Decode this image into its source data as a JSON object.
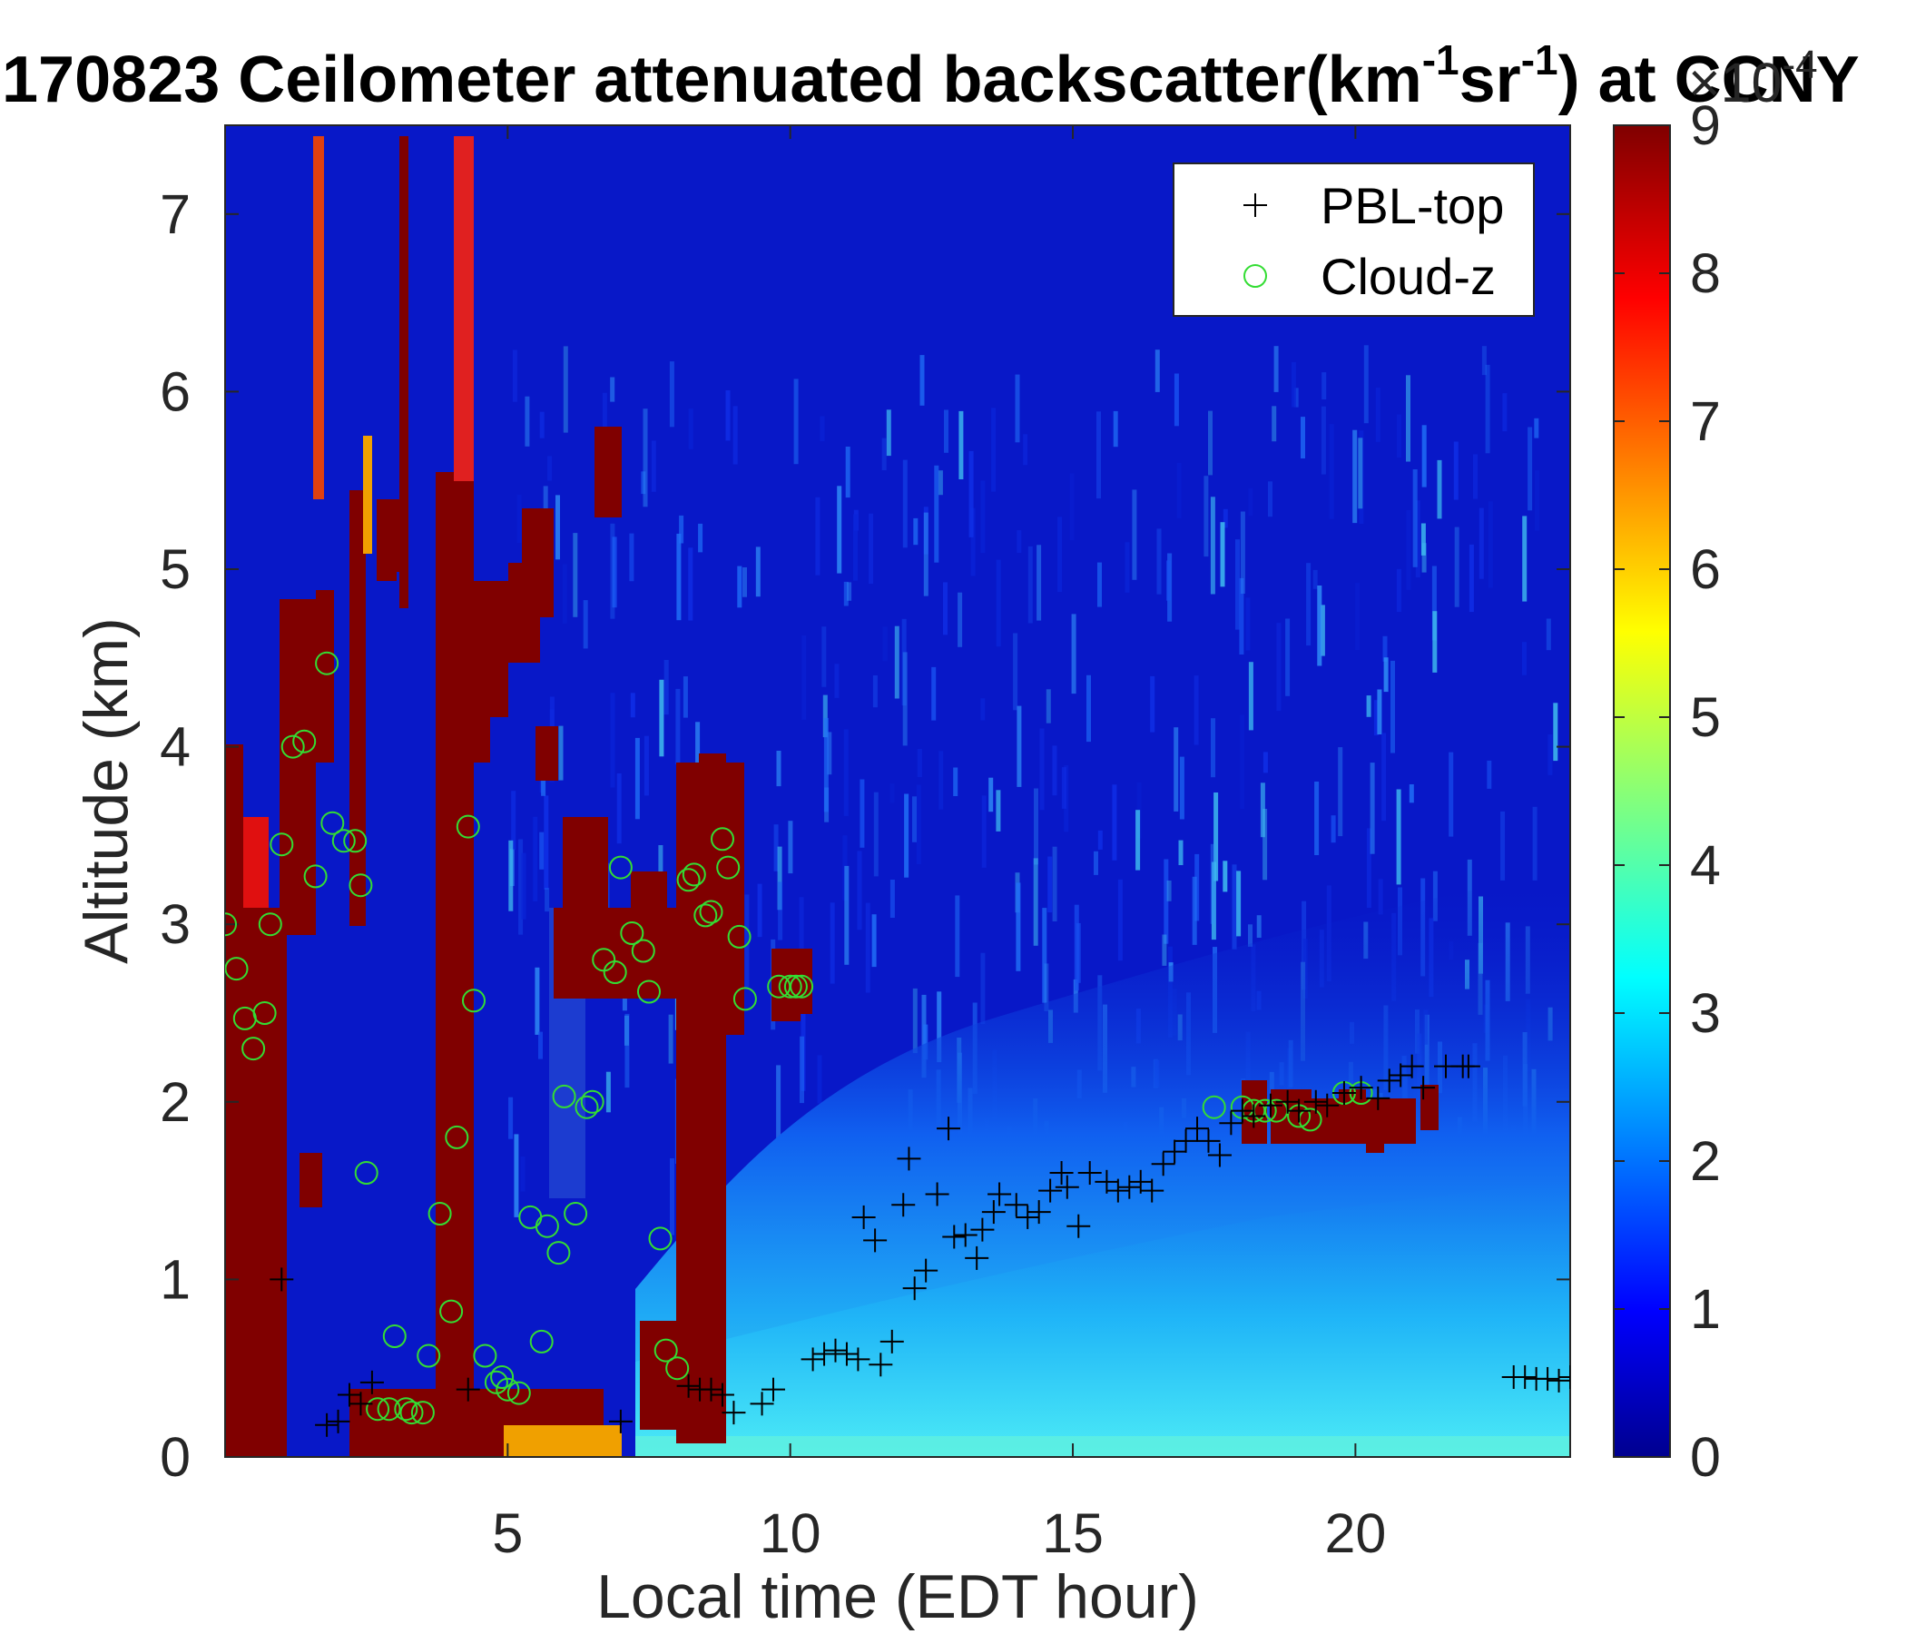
{
  "chart_data": {
    "type": "heatmap",
    "title": {
      "part1": "170823 Ceilometer attenuated backscatter(km",
      "sup1": "-1",
      "part2": "sr",
      "sup2": "-1",
      "part3": ") at CCNY"
    },
    "xlabel": "Local time (EDT hour)",
    "ylabel": "Altitude (km)",
    "xlim": [
      0,
      23.8
    ],
    "ylim": [
      0,
      7.5
    ],
    "xticks": [
      5,
      10,
      15,
      20
    ],
    "yticks": [
      0,
      1,
      2,
      3,
      4,
      5,
      6,
      7
    ],
    "colorbar": {
      "colormap": "jet",
      "range": [
        0,
        9
      ],
      "ticks": [
        0,
        1,
        2,
        3,
        4,
        5,
        6,
        7,
        8,
        9
      ],
      "exponent": "×10",
      "exponent_power": "-4"
    },
    "legend": {
      "position": "top-right",
      "entries": [
        {
          "label": "PBL-top",
          "marker": "+",
          "color": "#000000"
        },
        {
          "label": "Cloud-z",
          "marker": "o",
          "color": "#33dd33"
        }
      ]
    },
    "series": [
      {
        "name": "PBL-top",
        "points": [
          [
            1.0,
            1.0
          ],
          [
            1.8,
            0.18
          ],
          [
            2.0,
            0.2
          ],
          [
            2.2,
            0.35
          ],
          [
            2.4,
            0.3
          ],
          [
            2.6,
            0.42
          ],
          [
            4.3,
            0.38
          ],
          [
            7.0,
            0.2
          ],
          [
            8.2,
            0.4
          ],
          [
            8.4,
            0.38
          ],
          [
            8.6,
            0.38
          ],
          [
            8.8,
            0.35
          ],
          [
            9.0,
            0.25
          ],
          [
            9.5,
            0.3
          ],
          [
            9.7,
            0.38
          ],
          [
            10.4,
            0.55
          ],
          [
            10.6,
            0.58
          ],
          [
            10.8,
            0.6
          ],
          [
            11.0,
            0.58
          ],
          [
            11.2,
            0.55
          ],
          [
            11.3,
            1.35
          ],
          [
            11.5,
            1.22
          ],
          [
            11.6,
            0.52
          ],
          [
            11.8,
            0.65
          ],
          [
            12.0,
            1.42
          ],
          [
            12.1,
            1.68
          ],
          [
            12.2,
            0.95
          ],
          [
            12.4,
            1.05
          ],
          [
            12.6,
            1.48
          ],
          [
            12.8,
            1.85
          ],
          [
            12.9,
            1.24
          ],
          [
            13.1,
            1.25
          ],
          [
            13.3,
            1.12
          ],
          [
            13.4,
            1.28
          ],
          [
            13.6,
            1.38
          ],
          [
            13.7,
            1.48
          ],
          [
            14.0,
            1.42
          ],
          [
            14.2,
            1.35
          ],
          [
            14.4,
            1.38
          ],
          [
            14.6,
            1.5
          ],
          [
            14.8,
            1.6
          ],
          [
            14.9,
            1.52
          ],
          [
            15.1,
            1.3
          ],
          [
            15.3,
            1.6
          ],
          [
            15.6,
            1.55
          ],
          [
            15.8,
            1.5
          ],
          [
            16.0,
            1.52
          ],
          [
            16.2,
            1.55
          ],
          [
            16.4,
            1.5
          ],
          [
            16.6,
            1.65
          ],
          [
            16.8,
            1.72
          ],
          [
            17.0,
            1.78
          ],
          [
            17.2,
            1.85
          ],
          [
            17.4,
            1.78
          ],
          [
            17.6,
            1.7
          ],
          [
            17.8,
            1.88
          ],
          [
            18.0,
            1.95
          ],
          [
            18.2,
            1.92
          ],
          [
            18.5,
            1.98
          ],
          [
            18.8,
            2.0
          ],
          [
            19.0,
            1.95
          ],
          [
            19.3,
            2.0
          ],
          [
            19.5,
            1.98
          ],
          [
            19.8,
            2.05
          ],
          [
            20.1,
            2.08
          ],
          [
            20.4,
            2.02
          ],
          [
            20.6,
            2.12
          ],
          [
            20.8,
            2.15
          ],
          [
            21.0,
            2.2
          ],
          [
            21.2,
            2.08
          ],
          [
            21.6,
            2.2
          ],
          [
            21.9,
            2.2
          ],
          [
            22.0,
            2.2
          ],
          [
            22.8,
            0.45
          ],
          [
            23.0,
            0.45
          ],
          [
            23.2,
            0.44
          ],
          [
            23.4,
            0.44
          ],
          [
            23.6,
            0.43
          ],
          [
            23.8,
            0.45
          ]
        ]
      },
      {
        "name": "Cloud-z",
        "points": [
          [
            0.0,
            3.0
          ],
          [
            0.2,
            2.75
          ],
          [
            0.35,
            2.47
          ],
          [
            0.5,
            2.3
          ],
          [
            0.7,
            2.5
          ],
          [
            0.8,
            3.0
          ],
          [
            1.0,
            3.45
          ],
          [
            1.2,
            4.0
          ],
          [
            1.4,
            4.03
          ],
          [
            1.6,
            3.27
          ],
          [
            1.8,
            4.47
          ],
          [
            1.9,
            3.57
          ],
          [
            2.1,
            3.47
          ],
          [
            2.3,
            3.47
          ],
          [
            2.4,
            3.22
          ],
          [
            2.5,
            1.6
          ],
          [
            2.7,
            0.27
          ],
          [
            2.9,
            0.27
          ],
          [
            3.0,
            0.68
          ],
          [
            3.2,
            0.27
          ],
          [
            3.3,
            0.25
          ],
          [
            3.5,
            0.25
          ],
          [
            3.6,
            0.57
          ],
          [
            3.8,
            1.37
          ],
          [
            4.0,
            0.82
          ],
          [
            4.1,
            1.8
          ],
          [
            4.3,
            3.55
          ],
          [
            4.4,
            2.57
          ],
          [
            4.6,
            0.57
          ],
          [
            4.8,
            0.42
          ],
          [
            4.9,
            0.45
          ],
          [
            5.0,
            0.38
          ],
          [
            5.2,
            0.36
          ],
          [
            5.4,
            1.35
          ],
          [
            5.6,
            0.65
          ],
          [
            5.7,
            1.3
          ],
          [
            5.9,
            1.15
          ],
          [
            6.0,
            2.03
          ],
          [
            6.2,
            1.37
          ],
          [
            6.4,
            1.97
          ],
          [
            6.5,
            2.0
          ],
          [
            6.7,
            2.8
          ],
          [
            6.9,
            2.73
          ],
          [
            7.0,
            3.32
          ],
          [
            7.2,
            2.95
          ],
          [
            7.4,
            2.85
          ],
          [
            7.5,
            2.62
          ],
          [
            7.7,
            1.23
          ],
          [
            7.8,
            0.6
          ],
          [
            8.0,
            0.5
          ],
          [
            8.2,
            3.25
          ],
          [
            8.3,
            3.28
          ],
          [
            8.5,
            3.05
          ],
          [
            8.6,
            3.07
          ],
          [
            8.8,
            3.48
          ],
          [
            8.9,
            3.32
          ],
          [
            9.1,
            2.93
          ],
          [
            9.2,
            2.58
          ],
          [
            9.8,
            2.65
          ],
          [
            10.0,
            2.65
          ],
          [
            10.1,
            2.65
          ],
          [
            10.2,
            2.65
          ],
          [
            17.5,
            1.97
          ],
          [
            18.0,
            1.97
          ],
          [
            18.2,
            1.95
          ],
          [
            18.4,
            1.95
          ],
          [
            18.6,
            1.95
          ],
          [
            19.0,
            1.92
          ],
          [
            19.2,
            1.9
          ],
          [
            19.8,
            2.05
          ],
          [
            20.1,
            2.05
          ]
        ]
      }
    ]
  }
}
